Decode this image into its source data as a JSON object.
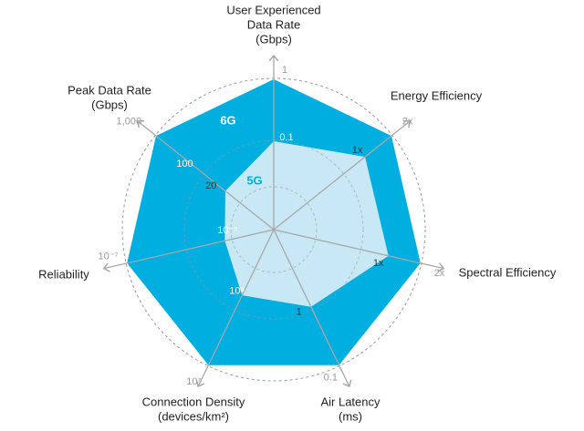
{
  "chart_data": {
    "type": "radar",
    "colors": {
      "outer_fill": "#00aee0",
      "inner_fill": "#c7e8f4",
      "axis_line": "#a8a8a8",
      "grid_circle": "#9a9a9a",
      "label_5g": "#00aee0",
      "label_6g": "#ffffff"
    },
    "axes": [
      {
        "title": [
          "User Experienced",
          "Data Rate",
          "(Gbps)"
        ],
        "ticks": [
          "0.1",
          "1"
        ]
      },
      {
        "title": [
          "Energy Efficiency"
        ],
        "ticks": [
          "1x",
          "2x"
        ]
      },
      {
        "title": [
          "Spectral Efficiency"
        ],
        "ticks": [
          "1x",
          "2x"
        ]
      },
      {
        "title": [
          "Air Latency",
          "(ms)"
        ],
        "ticks": [
          "1",
          "0.1"
        ]
      },
      {
        "title": [
          "Connection Density",
          "(devices/km²)"
        ],
        "ticks": [
          "10⁶",
          "10⁷"
        ]
      },
      {
        "title": [
          "Reliability"
        ],
        "ticks": [
          "10⁻⁵",
          "10⁻⁷"
        ]
      },
      {
        "title": [
          "Peak Data Rate",
          "(Gbps)"
        ],
        "ticks": [
          "20",
          "1,000"
        ],
        "extra_tick": "100"
      }
    ],
    "series": [
      {
        "name": "5G",
        "values": [
          "0.1",
          "1x",
          "1x",
          "1",
          "10⁶",
          "10⁻⁵",
          "20"
        ]
      },
      {
        "name": "6G",
        "values": [
          "1",
          "2x",
          "2x",
          "0.1",
          "10⁷",
          "10⁻⁷",
          "1,000"
        ]
      }
    ]
  }
}
